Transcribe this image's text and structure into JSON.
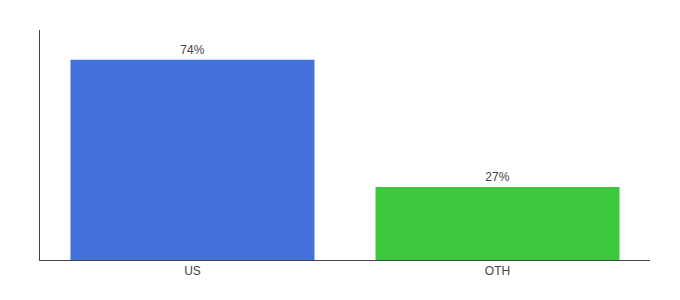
{
  "chart_data": {
    "type": "bar",
    "categories": [
      "US",
      "OTH"
    ],
    "values": [
      74,
      27
    ],
    "value_labels": [
      "74%",
      "27%"
    ],
    "colors": [
      "#4472db",
      "#3dc93d"
    ],
    "ylim": [
      0,
      85
    ],
    "grid": false,
    "data_labels": true,
    "tick_labels": "x"
  }
}
